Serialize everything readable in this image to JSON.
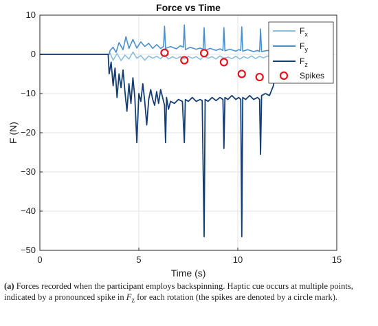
{
  "chart_data": {
    "type": "line",
    "title": "Force vs Time",
    "xlabel": "Time (s)",
    "ylabel": "F (N)",
    "xlim": [
      0,
      15
    ],
    "ylim": [
      -50,
      10
    ],
    "xticks": [
      0,
      5,
      10,
      15
    ],
    "yticks": [
      10,
      0,
      -10,
      -20,
      -30,
      -40,
      -50
    ],
    "grid": true,
    "legend_position": "top-right",
    "series": [
      {
        "name": "F_x",
        "legend_main": "F",
        "legend_sub": "x",
        "color": "#8bbedc",
        "points": [
          [
            0,
            0
          ],
          [
            3.5,
            0
          ],
          [
            3.55,
            0.3
          ],
          [
            3.7,
            -1.5
          ],
          [
            3.9,
            0.2
          ],
          [
            4.1,
            -1.6
          ],
          [
            4.3,
            -0.2
          ],
          [
            4.5,
            -1.2
          ],
          [
            4.7,
            0.6
          ],
          [
            4.9,
            -1.0
          ],
          [
            5.1,
            -0.3
          ],
          [
            5.3,
            -1.5
          ],
          [
            5.5,
            -0.4
          ],
          [
            5.7,
            -1.0
          ],
          [
            5.9,
            -0.5
          ],
          [
            6.1,
            -1.1
          ],
          [
            6.3,
            -0.2
          ],
          [
            6.5,
            -1.2
          ],
          [
            6.7,
            -0.6
          ],
          [
            6.9,
            -1.1
          ],
          [
            7.1,
            -0.6
          ],
          [
            7.3,
            -1.2
          ],
          [
            7.5,
            -0.5
          ],
          [
            7.7,
            -1.0
          ],
          [
            7.9,
            -0.6
          ],
          [
            8.1,
            -1.3
          ],
          [
            8.3,
            -0.5
          ],
          [
            8.5,
            -1.0
          ],
          [
            8.7,
            -0.6
          ],
          [
            8.9,
            -1.2
          ],
          [
            9.1,
            -0.4
          ],
          [
            9.3,
            -1.0
          ],
          [
            9.5,
            -0.7
          ],
          [
            9.7,
            -1.1
          ],
          [
            9.9,
            -0.5
          ],
          [
            10.1,
            -1.2
          ],
          [
            10.3,
            -0.6
          ],
          [
            10.5,
            -1.0
          ],
          [
            10.7,
            -0.4
          ],
          [
            10.9,
            -1.1
          ],
          [
            11.1,
            -0.5
          ],
          [
            11.3,
            -0.9
          ],
          [
            11.5,
            -0.4
          ],
          [
            11.7,
            -0.8
          ],
          [
            11.9,
            -0.6
          ],
          [
            12.1,
            -0.9
          ],
          [
            12.3,
            -0.7
          ],
          [
            12.5,
            -0.8
          ]
        ]
      },
      {
        "name": "F_y",
        "legend_main": "F",
        "legend_sub": "y",
        "color": "#4a8fcc",
        "points": [
          [
            0,
            0
          ],
          [
            3.5,
            0
          ],
          [
            3.55,
            1.0
          ],
          [
            3.7,
            1.8
          ],
          [
            3.85,
            0.5
          ],
          [
            4.0,
            3.0
          ],
          [
            4.2,
            1.2
          ],
          [
            4.35,
            4.5
          ],
          [
            4.5,
            1.5
          ],
          [
            4.7,
            3.8
          ],
          [
            4.9,
            1.6
          ],
          [
            5.1,
            3.2
          ],
          [
            5.3,
            2.0
          ],
          [
            5.5,
            2.8
          ],
          [
            5.7,
            1.5
          ],
          [
            5.9,
            2.5
          ],
          [
            6.1,
            1.5
          ],
          [
            6.25,
            2.0
          ],
          [
            6.3,
            7.2
          ],
          [
            6.35,
            1.5
          ],
          [
            6.6,
            2.0
          ],
          [
            6.9,
            1.4
          ],
          [
            7.1,
            2.2
          ],
          [
            7.25,
            1.8
          ],
          [
            7.3,
            7.5
          ],
          [
            7.35,
            1.2
          ],
          [
            7.6,
            1.8
          ],
          [
            7.9,
            1.3
          ],
          [
            8.1,
            1.6
          ],
          [
            8.25,
            1.3
          ],
          [
            8.3,
            6.8
          ],
          [
            8.35,
            1.0
          ],
          [
            8.6,
            1.5
          ],
          [
            8.9,
            1.0
          ],
          [
            9.1,
            1.4
          ],
          [
            9.25,
            1.0
          ],
          [
            9.3,
            6.8
          ],
          [
            9.35,
            0.9
          ],
          [
            9.6,
            1.3
          ],
          [
            9.9,
            0.8
          ],
          [
            10.05,
            1.2
          ],
          [
            10.15,
            1.0
          ],
          [
            10.2,
            7.0
          ],
          [
            10.25,
            0.8
          ],
          [
            10.5,
            1.2
          ],
          [
            10.8,
            0.7
          ],
          [
            11.0,
            1.0
          ],
          [
            11.1,
            0.7
          ],
          [
            11.15,
            6.5
          ],
          [
            11.2,
            0.7
          ],
          [
            11.5,
            1.0
          ],
          [
            11.8,
            0.6
          ],
          [
            12.1,
            0.8
          ],
          [
            12.3,
            0.5
          ],
          [
            12.5,
            0.6
          ]
        ]
      },
      {
        "name": "F_z",
        "legend_main": "F",
        "legend_sub": "z",
        "color": "#143d73",
        "points": [
          [
            0,
            0
          ],
          [
            3.45,
            0
          ],
          [
            3.5,
            -5.0
          ],
          [
            3.6,
            -2.0
          ],
          [
            3.7,
            -8.0
          ],
          [
            3.8,
            -3.5
          ],
          [
            3.9,
            -11.0
          ],
          [
            4.0,
            -5.0
          ],
          [
            4.1,
            -8.5
          ],
          [
            4.2,
            -4.0
          ],
          [
            4.3,
            -9.5
          ],
          [
            4.4,
            -14.5
          ],
          [
            4.5,
            -7.5
          ],
          [
            4.6,
            -12.5
          ],
          [
            4.7,
            -6.0
          ],
          [
            4.8,
            -11.0
          ],
          [
            4.9,
            -22.5
          ],
          [
            5.0,
            -10.0
          ],
          [
            5.1,
            -12.0
          ],
          [
            5.2,
            -7.5
          ],
          [
            5.3,
            -12.0
          ],
          [
            5.4,
            -18.0
          ],
          [
            5.5,
            -11.5
          ],
          [
            5.6,
            -9.0
          ],
          [
            5.7,
            -11.5
          ],
          [
            5.8,
            -13.0
          ],
          [
            5.9,
            -9.5
          ],
          [
            6.0,
            -12.5
          ],
          [
            6.1,
            -9.0
          ],
          [
            6.2,
            -11.0
          ],
          [
            6.3,
            -13.0
          ],
          [
            6.35,
            -22.5
          ],
          [
            6.4,
            -11.0
          ],
          [
            6.5,
            -14.0
          ],
          [
            6.6,
            -12.0
          ],
          [
            6.8,
            -12.5
          ],
          [
            7.0,
            -11.5
          ],
          [
            7.2,
            -12.0
          ],
          [
            7.3,
            -22.5
          ],
          [
            7.35,
            -11.5
          ],
          [
            7.5,
            -12.0
          ],
          [
            7.7,
            -11.0
          ],
          [
            7.9,
            -12.0
          ],
          [
            8.1,
            -11.5
          ],
          [
            8.2,
            -11.8
          ],
          [
            8.3,
            -46.5
          ],
          [
            8.35,
            -11.5
          ],
          [
            8.5,
            -12.0
          ],
          [
            8.7,
            -11.0
          ],
          [
            8.9,
            -11.8
          ],
          [
            9.1,
            -11.0
          ],
          [
            9.25,
            -11.5
          ],
          [
            9.3,
            -24.0
          ],
          [
            9.35,
            -11.0
          ],
          [
            9.5,
            -11.5
          ],
          [
            9.7,
            -10.5
          ],
          [
            9.9,
            -11.5
          ],
          [
            10.05,
            -11.0
          ],
          [
            10.15,
            -11.5
          ],
          [
            10.2,
            -46.5
          ],
          [
            10.25,
            -11.0
          ],
          [
            10.4,
            -11.5
          ],
          [
            10.6,
            -10.5
          ],
          [
            10.8,
            -11.5
          ],
          [
            11.0,
            -11.0
          ],
          [
            11.1,
            -11.5
          ],
          [
            11.15,
            -25.5
          ],
          [
            11.2,
            -10.5
          ],
          [
            11.4,
            -10.0
          ],
          [
            11.6,
            -10.5
          ],
          [
            11.8,
            -8.0
          ],
          [
            12.0,
            -2.0
          ],
          [
            12.2,
            -0.5
          ],
          [
            12.5,
            -0.3
          ]
        ]
      }
    ],
    "spikes": {
      "name": "Spikes",
      "color": "#e8101c",
      "points": [
        [
          6.3,
          0.4
        ],
        [
          7.3,
          -1.5
        ],
        [
          8.3,
          0.3
        ],
        [
          9.3,
          -2.0
        ],
        [
          10.2,
          -5.0
        ],
        [
          11.1,
          -5.8
        ]
      ]
    }
  },
  "caption": {
    "label": "(a)",
    "text_before": " Forces recorded when the participant employs backspinning. Haptic cue occurs at multiple points, indicated by a pronounced spike in ",
    "math_main": "F",
    "math_sub": "z",
    "text_after": " for each rotation (the spikes are denoted by a circle mark)."
  }
}
